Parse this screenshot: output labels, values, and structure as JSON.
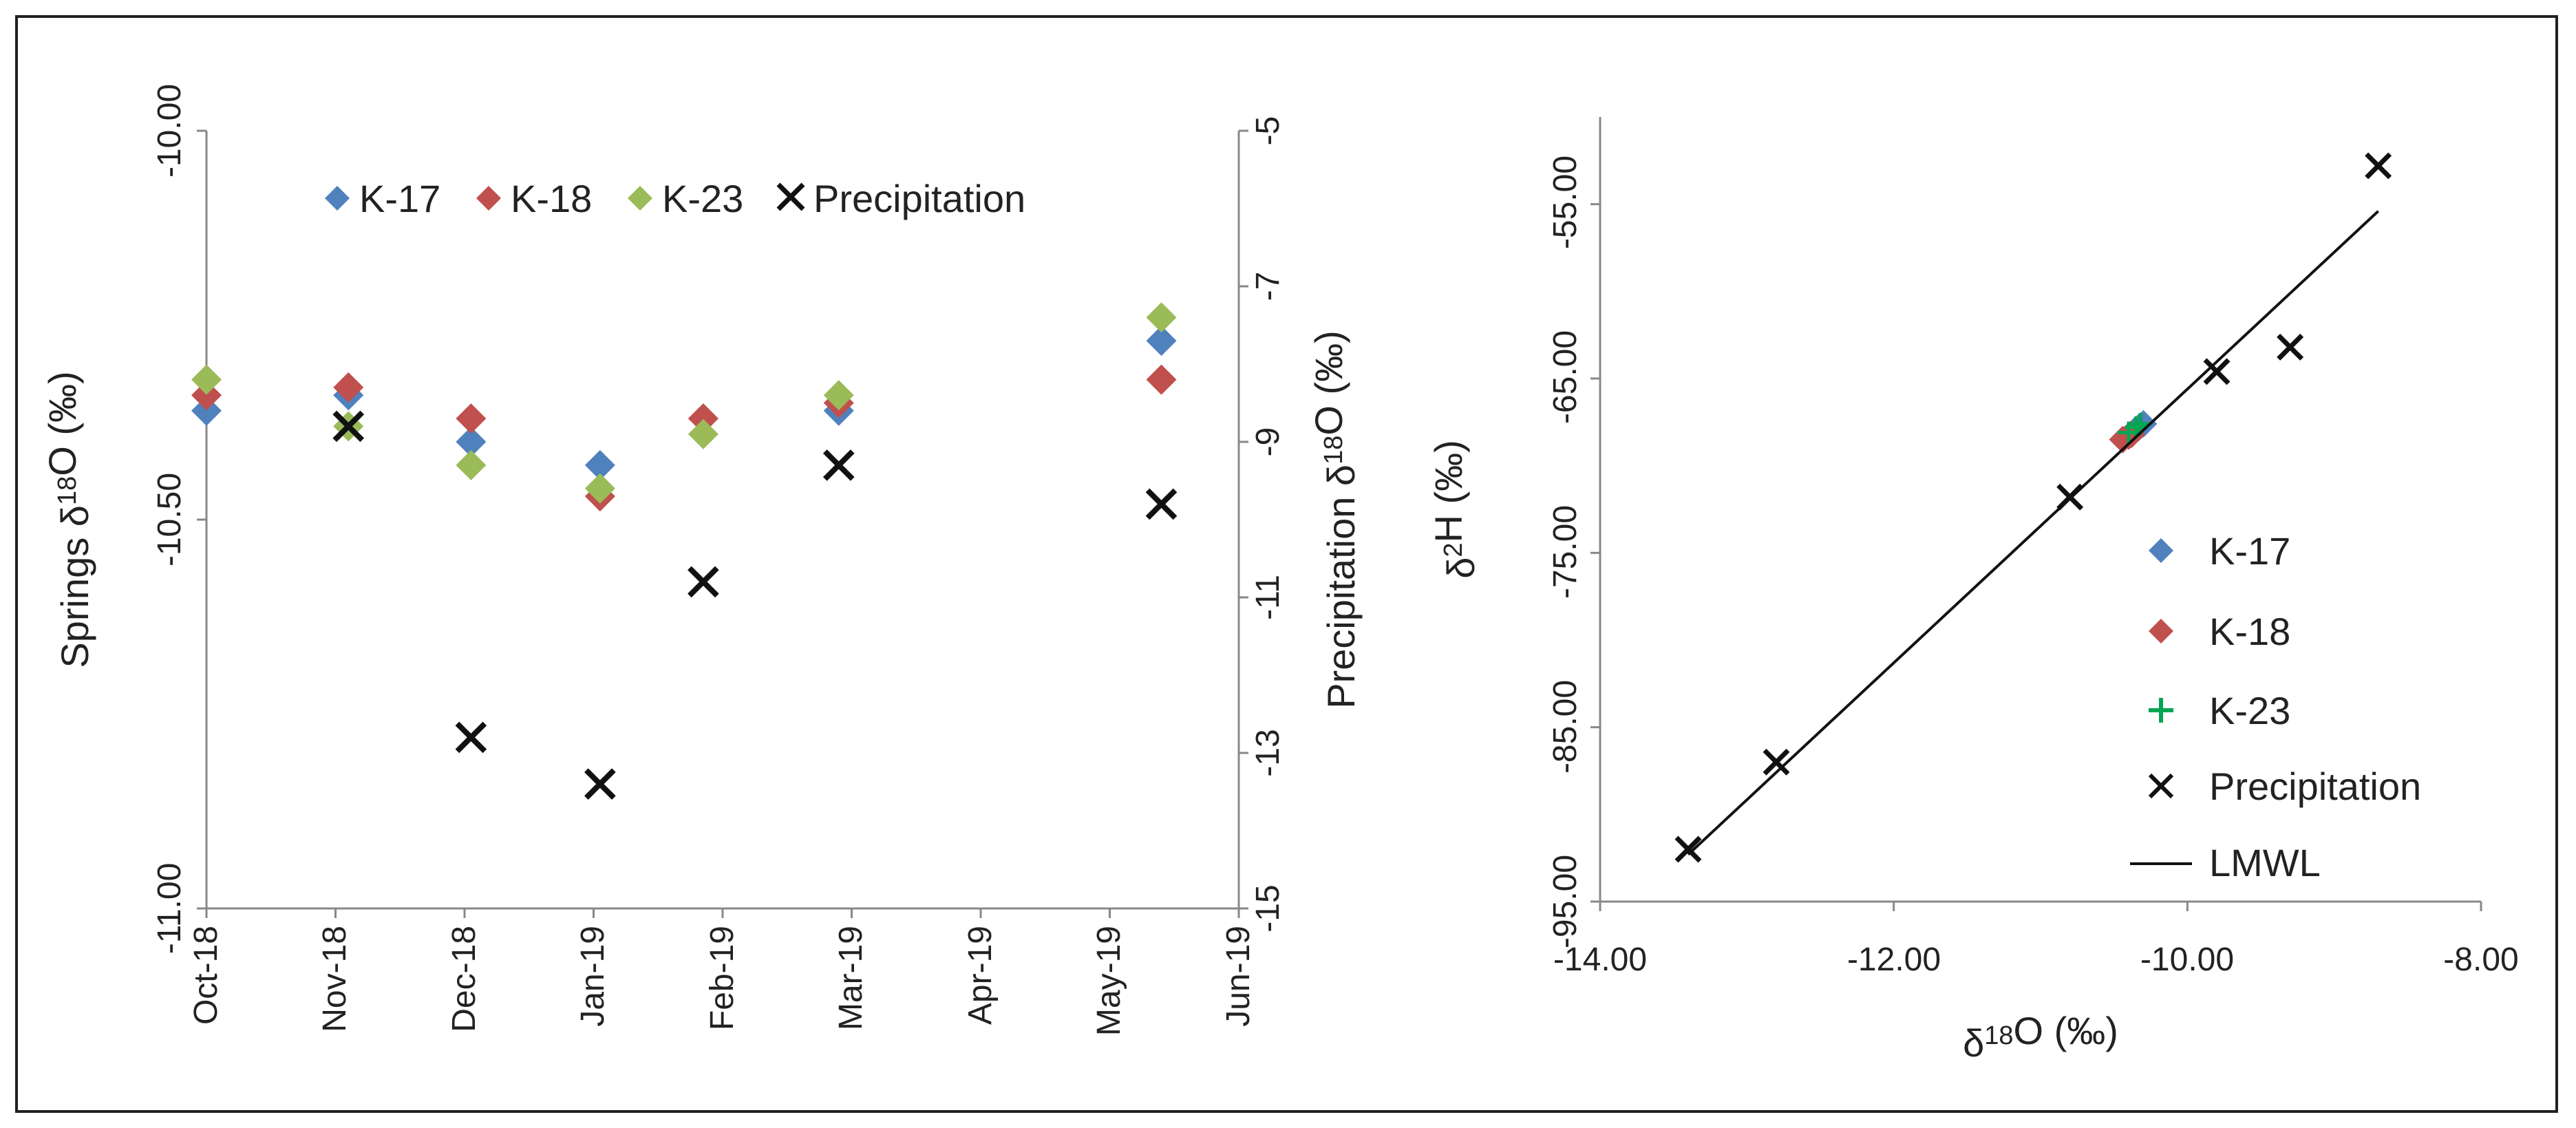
{
  "chart_data": [
    {
      "type": "scatter",
      "title": "",
      "xlabel": "",
      "ylabel": "Springs δ18O (‰)",
      "y2label": "Precipitation  δ18O (‰)",
      "categories": [
        "Oct-18",
        "Nov-18",
        "Dec-18",
        "Jan-19",
        "Feb-19",
        "Mar-19",
        "Apr-19",
        "May-19",
        "Jun-19"
      ],
      "ylim": [
        -11.0,
        -10.0
      ],
      "y2lim": [
        -15,
        -5
      ],
      "yticks": [
        "-10.00",
        "-10.50",
        "-11.00"
      ],
      "y2ticks": [
        "-5",
        "-7",
        "-9",
        "-11",
        "-13",
        "-15"
      ],
      "legend_position": "top",
      "series": [
        {
          "name": "K-17",
          "axis": "left",
          "marker": "diamond",
          "color": "#4F81BD",
          "x": [
            0,
            1.1,
            2.05,
            3.05,
            3.85,
            4.9,
            7.4
          ],
          "y": [
            -10.36,
            -10.34,
            -10.4,
            -10.43,
            -10.37,
            -10.36,
            -10.27
          ]
        },
        {
          "name": "K-18",
          "axis": "left",
          "marker": "diamond",
          "color": "#C0504D",
          "x": [
            0,
            1.1,
            2.05,
            3.05,
            3.85,
            4.9,
            7.4
          ],
          "y": [
            -10.34,
            -10.33,
            -10.37,
            -10.47,
            -10.37,
            -10.35,
            -10.32
          ]
        },
        {
          "name": "K-23",
          "axis": "left",
          "marker": "diamond",
          "color": "#9BBB59",
          "x": [
            0,
            1.1,
            2.05,
            3.05,
            3.85,
            4.9,
            7.4
          ],
          "y": [
            -10.32,
            -10.38,
            -10.43,
            -10.46,
            -10.39,
            -10.34,
            -10.24
          ]
        },
        {
          "name": "Precipitation",
          "axis": "right",
          "marker": "x",
          "color": "#111111",
          "x": [
            1.1,
            2.05,
            3.05,
            3.85,
            4.9,
            7.4
          ],
          "y": [
            -8.8,
            -12.8,
            -13.4,
            -10.8,
            -9.3,
            -9.8
          ]
        }
      ]
    },
    {
      "type": "scatter",
      "title": "",
      "xlabel": "δ18O (‰)",
      "ylabel": "δ2H (‰)",
      "xlim": [
        -14,
        -8
      ],
      "ylim": [
        -95,
        -50
      ],
      "xticks": [
        "-14.00",
        "-12.00",
        "-10.00",
        "-8.00"
      ],
      "yticks": [
        "-55.00",
        "-65.00",
        "-75.00",
        "-85.00",
        "-95.00"
      ],
      "legend_position": "right",
      "series": [
        {
          "name": "K-17",
          "marker": "diamond",
          "color": "#4F81BD",
          "x": [
            -10.3,
            -10.36,
            -10.33
          ],
          "y": [
            -67.6,
            -68.0,
            -67.8
          ]
        },
        {
          "name": "K-18",
          "marker": "diamond",
          "color": "#C0504D",
          "x": [
            -10.44,
            -10.4,
            -10.38
          ],
          "y": [
            -68.5,
            -68.3,
            -68.2
          ]
        },
        {
          "name": "K-23",
          "marker": "plus",
          "color": "#00A651",
          "x": [
            -10.35,
            -10.4,
            -10.32
          ],
          "y": [
            -67.8,
            -68.1,
            -67.6
          ]
        },
        {
          "name": "Precipitation",
          "marker": "x",
          "color": "#111111",
          "x": [
            -13.4,
            -12.8,
            -10.8,
            -9.8,
            -9.3,
            -8.7
          ],
          "y": [
            -92.0,
            -87.0,
            -71.8,
            -64.6,
            -63.2,
            -52.8
          ]
        },
        {
          "name": "LMWL",
          "marker": "line",
          "color": "#111111",
          "x": [
            -13.4,
            -8.7
          ],
          "y": [
            -92.3,
            -55.4
          ]
        }
      ]
    }
  ]
}
